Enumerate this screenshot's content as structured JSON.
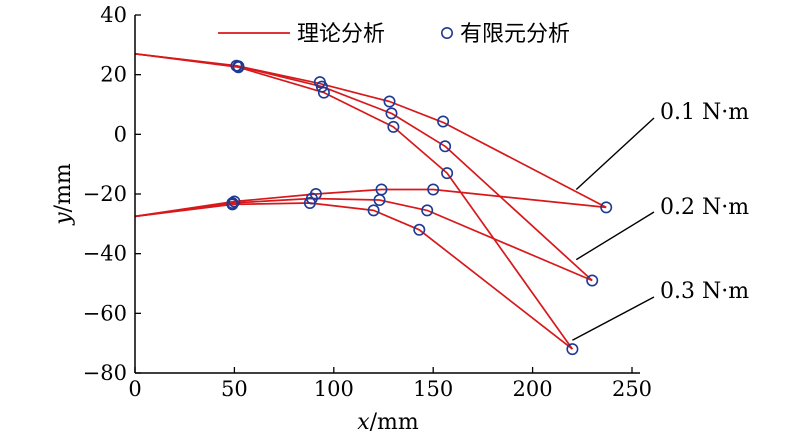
{
  "chart_data": {
    "type": "line",
    "xlabel_italic": "x",
    "xlabel_unit": "/mm",
    "ylabel_italic": "y",
    "ylabel_unit": "/mm",
    "xlim": [
      0,
      250
    ],
    "ylim": [
      -80,
      40
    ],
    "xticks": [
      0,
      50,
      100,
      150,
      200,
      250
    ],
    "yticks": [
      -80,
      -60,
      -40,
      -20,
      0,
      20,
      40
    ],
    "ytick_labels": [
      "−80",
      "−60",
      "−40",
      "−20",
      "0",
      "20",
      "40"
    ],
    "legend": {
      "placement": "top",
      "theory_label": "理论分析",
      "fea_label": "有限元分析"
    },
    "colors": {
      "line": "#d7191c",
      "marker": "#1f3a93"
    },
    "series": [
      {
        "group": "upper",
        "annotation": "0.1 N·m",
        "theory": [
          [
            0,
            27
          ],
          [
            51,
            23
          ],
          [
            93,
            17
          ],
          [
            128,
            11
          ],
          [
            155,
            4
          ],
          [
            237,
            -24.5
          ]
        ],
        "fea": [
          [
            51,
            23
          ],
          [
            93,
            17.5
          ],
          [
            128,
            11
          ],
          [
            155,
            4.3
          ],
          [
            237,
            -24.5
          ]
        ]
      },
      {
        "group": "upper",
        "annotation": "0.2 N·m",
        "theory": [
          [
            0,
            27
          ],
          [
            52,
            22.8
          ],
          [
            94,
            16
          ],
          [
            129,
            7
          ],
          [
            156,
            -4
          ],
          [
            230,
            -49
          ]
        ],
        "fea": [
          [
            52,
            22.8
          ],
          [
            94,
            16
          ],
          [
            129,
            7
          ],
          [
            156,
            -4
          ],
          [
            230,
            -49
          ]
        ]
      },
      {
        "group": "upper",
        "annotation": "0.3 N·m",
        "theory": [
          [
            0,
            27
          ],
          [
            52,
            22.5
          ],
          [
            95,
            14
          ],
          [
            130,
            2.5
          ],
          [
            157,
            -13
          ],
          [
            220,
            -72
          ]
        ],
        "fea": [
          [
            52,
            22.5
          ],
          [
            95,
            14
          ],
          [
            130,
            2.5
          ],
          [
            157,
            -13
          ],
          [
            220,
            -72
          ]
        ]
      },
      {
        "group": "lower",
        "annotation": "0.1 N·m",
        "theory": [
          [
            0,
            -27.5
          ],
          [
            50,
            -22.5
          ],
          [
            91,
            -20
          ],
          [
            124,
            -18.5
          ],
          [
            150,
            -18.5
          ],
          [
            237,
            -24.5
          ]
        ],
        "fea": [
          [
            50,
            -22.5
          ],
          [
            91,
            -20
          ],
          [
            124,
            -18.5
          ],
          [
            150,
            -18.5
          ]
        ]
      },
      {
        "group": "lower",
        "annotation": "0.2 N·m",
        "theory": [
          [
            0,
            -27.5
          ],
          [
            49,
            -23
          ],
          [
            89,
            -21.5
          ],
          [
            123,
            -22
          ],
          [
            147,
            -25.5
          ],
          [
            230,
            -49
          ]
        ],
        "fea": [
          [
            49,
            -23
          ],
          [
            89,
            -21.5
          ],
          [
            123,
            -22
          ],
          [
            147,
            -25.5
          ]
        ]
      },
      {
        "group": "lower",
        "annotation": "0.3 N·m",
        "theory": [
          [
            0,
            -27.5
          ],
          [
            49,
            -23.5
          ],
          [
            88,
            -23
          ],
          [
            120,
            -25.5
          ],
          [
            143,
            -32
          ],
          [
            220,
            -72
          ]
        ],
        "fea": [
          [
            49,
            -23.5
          ],
          [
            88,
            -23
          ],
          [
            120,
            -25.5
          ],
          [
            143,
            -32
          ]
        ]
      }
    ],
    "annotations": [
      {
        "label": "0.1 N·m",
        "target": [
          222,
          -18.5
        ]
      },
      {
        "label": "0.2 N·m",
        "target": [
          222,
          -42
        ]
      },
      {
        "label": "0.3 N·m",
        "target": [
          220,
          -69
        ]
      }
    ]
  }
}
